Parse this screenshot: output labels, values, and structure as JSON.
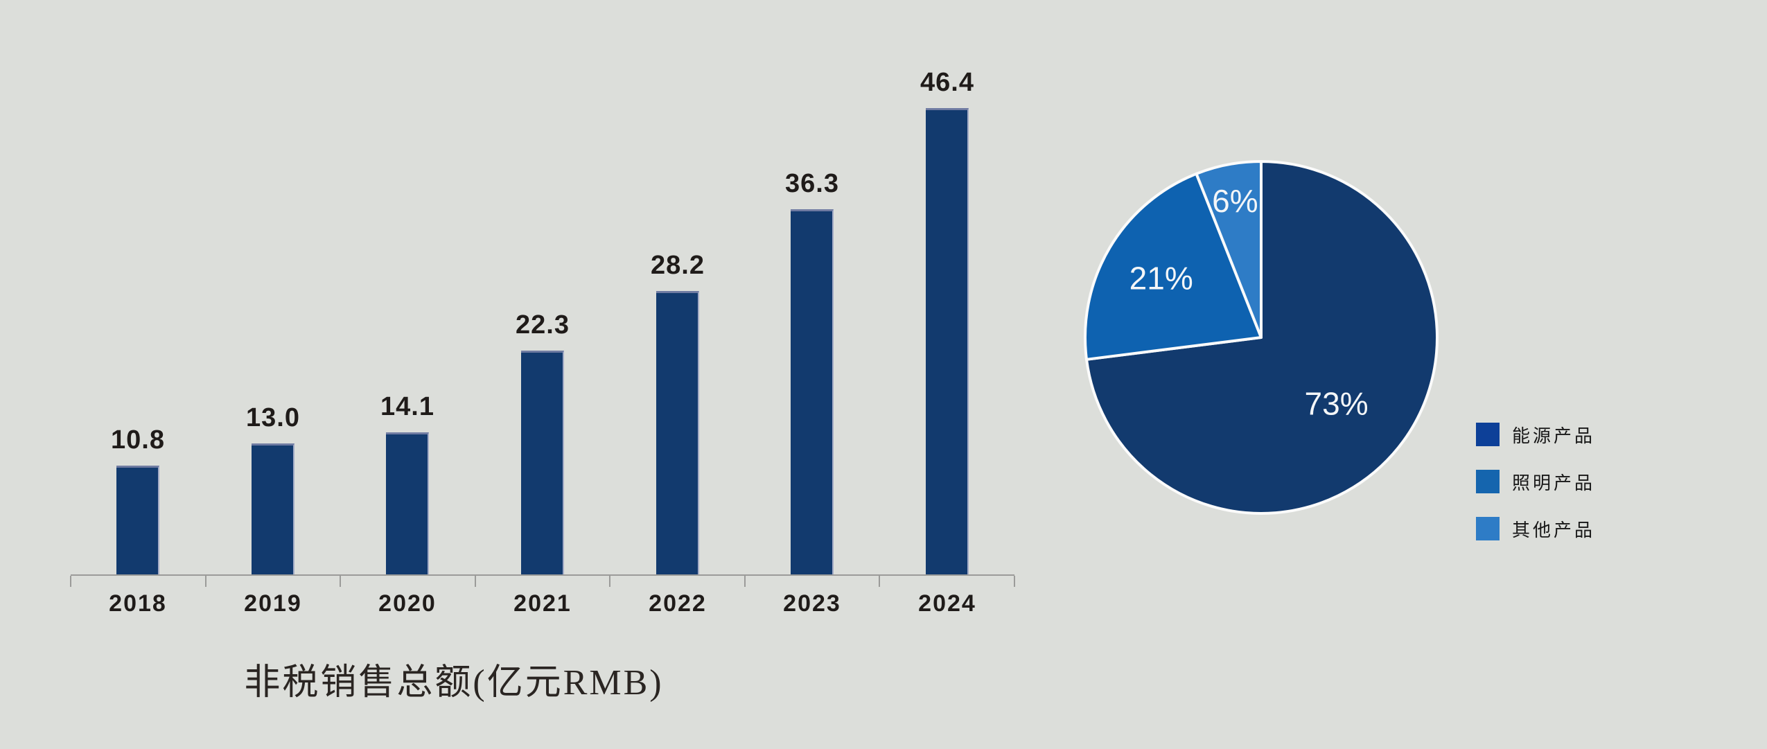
{
  "background_color": "#DCDEDA",
  "chart_data": [
    {
      "type": "bar",
      "title": "非税销售总额(亿元RMB)",
      "categories": [
        "2018",
        "2019",
        "2020",
        "2021",
        "2022",
        "2023",
        "2024"
      ],
      "values": [
        10.8,
        13.0,
        14.1,
        22.3,
        28.2,
        36.3,
        46.4
      ],
      "value_labels": [
        "10.8",
        "13.0",
        "14.1",
        "22.3",
        "28.2",
        "36.3",
        "46.4"
      ],
      "ylim": [
        0,
        46.4
      ],
      "grid": "off",
      "bar_color": "#123A6E",
      "axis_color": "#9B9B99",
      "text_color": "#1F1B19"
    },
    {
      "type": "pie",
      "direction": "clockwise",
      "start_angle_deg": 0,
      "label_color": "#F4F6F8",
      "slice_border_color": "#FBFBFB",
      "legend_position": "right",
      "slices": [
        {
          "label": "能源产品",
          "pct": 73,
          "value_label": "73%",
          "color": "#123A6E",
          "legend_color": "#0D4098"
        },
        {
          "label": "照明产品",
          "pct": 21,
          "value_label": "21%",
          "color": "#0E62B0",
          "legend_color": "#1565AE"
        },
        {
          "label": "其他产品",
          "pct": 6,
          "value_label": "6%",
          "color": "#2E7CC6",
          "legend_color": "#2E7CC6"
        }
      ]
    }
  ]
}
